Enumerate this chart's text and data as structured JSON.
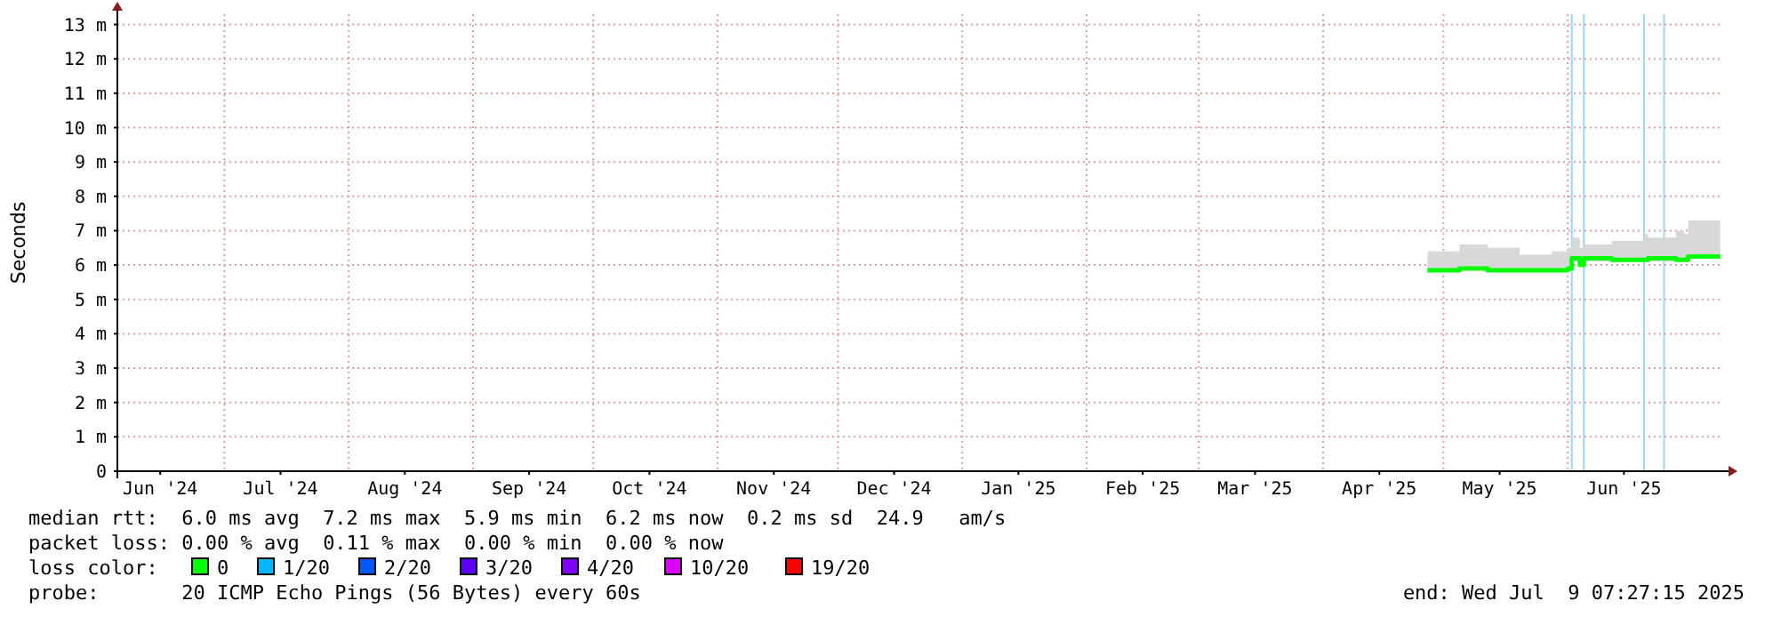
{
  "chart_data": {
    "type": "line",
    "ylabel": "Seconds",
    "xlim": [
      "2024-06-04T07:27",
      "2025-07-09T07:27"
    ],
    "xticks": [
      {
        "value": "2024-06-15",
        "label": "Jun '24"
      },
      {
        "value": "2024-07-15",
        "label": "Jul '24"
      },
      {
        "value": "2024-08-15",
        "label": "Aug '24"
      },
      {
        "value": "2024-09-15",
        "label": "Sep '24"
      },
      {
        "value": "2024-10-15",
        "label": "Oct '24"
      },
      {
        "value": "2024-11-15",
        "label": "Nov '24"
      },
      {
        "value": "2024-12-15",
        "label": "Dec '24"
      },
      {
        "value": "2025-01-15",
        "label": "Jan '25"
      },
      {
        "value": "2025-02-15",
        "label": "Feb '25"
      },
      {
        "value": "2025-03-15",
        "label": "Mar '25"
      },
      {
        "value": "2025-04-15",
        "label": "Apr '25"
      },
      {
        "value": "2025-05-15",
        "label": "May '25"
      },
      {
        "value": "2025-06-15",
        "label": "Jun '25"
      }
    ],
    "ylim": [
      0,
      13.3
    ],
    "yticks": [
      0,
      {
        "value": 1,
        "label": "1 m"
      },
      {
        "value": 2,
        "label": "2 m"
      },
      {
        "value": 3,
        "label": "3 m"
      },
      {
        "value": 4,
        "label": "4 m"
      },
      {
        "value": 5,
        "label": "5 m"
      },
      {
        "value": 6,
        "label": "6 m"
      },
      {
        "value": 7,
        "label": "7 m"
      },
      {
        "value": 8,
        "label": "8 m"
      },
      {
        "value": 9,
        "label": "9 m"
      },
      {
        "value": 10,
        "label": "10 m"
      },
      {
        "value": 11,
        "label": "11 m"
      },
      {
        "value": 12,
        "label": "12 m"
      },
      {
        "value": 13,
        "label": "13 m"
      }
    ],
    "grid": true,
    "legend": "bottom",
    "legend_title": "loss color:",
    "marker": "none",
    "line_style": "solid",
    "x": [
      "2025-04-27",
      "2025-05-05",
      "2025-05-12",
      "2025-05-20",
      "2025-05-28",
      "2025-06-01",
      "2025-06-02",
      "2025-06-04",
      "2025-06-05",
      "2025-06-12",
      "2025-06-20",
      "2025-06-21",
      "2025-06-28",
      "2025-06-30",
      "2025-07-01",
      "2025-07-09"
    ],
    "series": [
      {
        "name": "0",
        "color": "#00ff00",
        "values": [
          5.85,
          5.9,
          5.85,
          5.85,
          5.85,
          5.9,
          6.2,
          6.0,
          6.2,
          6.15,
          6.15,
          6.2,
          6.15,
          6.15,
          6.25,
          6.25
        ],
        "lower": [
          5.8,
          5.85,
          5.8,
          5.8,
          5.8,
          5.85,
          6.1,
          5.95,
          6.1,
          6.1,
          6.1,
          6.1,
          6.1,
          6.1,
          6.2,
          6.2
        ],
        "upper": [
          6.4,
          6.6,
          6.5,
          6.3,
          6.4,
          6.5,
          6.8,
          6.5,
          6.6,
          6.7,
          6.9,
          6.8,
          7.0,
          6.9,
          7.3,
          7.0
        ]
      },
      {
        "name": "1/20",
        "color": "#00b8ff",
        "values": [
          null,
          null,
          null,
          null,
          null,
          null,
          null,
          null,
          null,
          null,
          null,
          null,
          null,
          null,
          null,
          null
        ]
      },
      {
        "name": "2/20",
        "color": "#0059ff",
        "values": [
          null,
          null,
          null,
          null,
          null,
          null,
          null,
          null,
          null,
          null,
          null,
          null,
          null,
          null,
          null,
          null
        ]
      },
      {
        "name": "3/20",
        "color": "#5e00ff",
        "values": [
          null,
          null,
          null,
          null,
          null,
          null,
          null,
          null,
          null,
          null,
          null,
          null,
          null,
          null,
          null,
          null
        ]
      },
      {
        "name": "4/20",
        "color": "#7e00ff",
        "values": [
          null,
          null,
          null,
          null,
          null,
          null,
          null,
          null,
          null,
          null,
          null,
          null,
          null,
          null,
          null,
          null
        ]
      },
      {
        "name": "10/20",
        "color": "#dd00ff",
        "values": [
          null,
          null,
          null,
          null,
          null,
          null,
          null,
          null,
          null,
          null,
          null,
          null,
          null,
          null,
          null,
          null
        ]
      },
      {
        "name": "19/20",
        "color": "#ff0000",
        "values": [
          null,
          null,
          null,
          null,
          null,
          null,
          null,
          null,
          null,
          null,
          null,
          null,
          null,
          null,
          null,
          null
        ]
      }
    ],
    "ref_lines": [
      {
        "axis": "x",
        "value": "2025-06-02",
        "color": "#99d8f0"
      },
      {
        "axis": "x",
        "value": "2025-06-05",
        "color": "#99d8f0"
      },
      {
        "axis": "x",
        "value": "2025-06-20",
        "color": "#99d8f0"
      },
      {
        "axis": "x",
        "value": "2025-06-25",
        "color": "#99d8f0"
      }
    ],
    "annotations": [
      "median rtt:  6.0 ms avg  7.2 ms max  5.9 ms min  6.2 ms now  0.2 ms sd  24.9   am/s",
      "packet loss: 0.00 % avg  0.11 % max  0.00 % min  0.00 % now",
      "probe:       20 ICMP Echo Pings (56 Bytes) every 60s",
      "end: Wed Jul  9 07:27:15 2025"
    ]
  }
}
